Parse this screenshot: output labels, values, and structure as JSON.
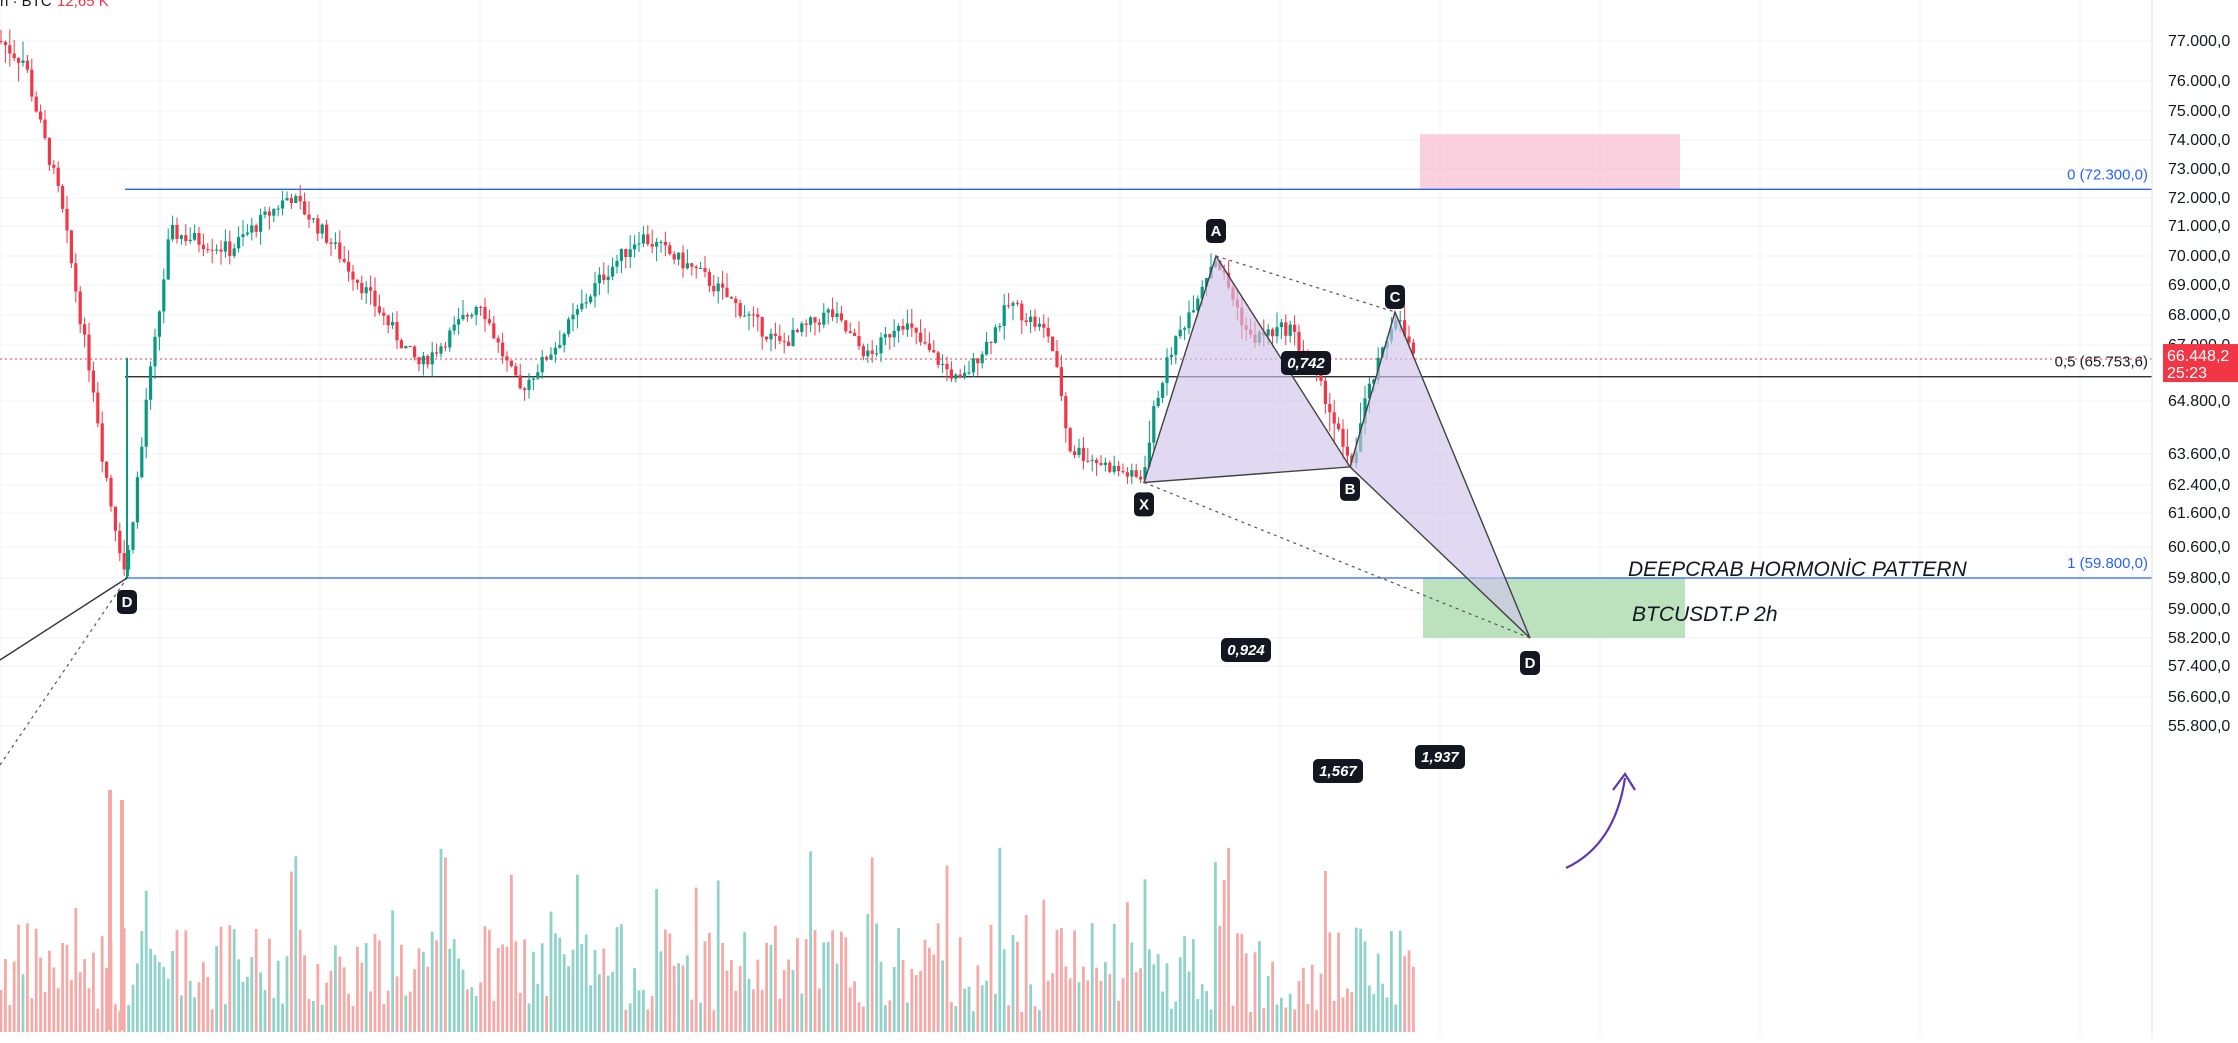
{
  "header": {
    "symbol_fragment": "n · BTC",
    "volume_value": "12,65 K",
    "volume_color": "#f23645"
  },
  "colors": {
    "up": "#089981",
    "down": "#f23645",
    "volume_up": "#8fd3cb",
    "volume_down": "#f7a9a7",
    "fib_line": "#2962ff",
    "fib_label": "#2962ff",
    "mid_line": "#131722",
    "pattern_fill": "#d1c4e9",
    "pattern_stroke": "#424242",
    "target_zone": "#b7dfb9",
    "supply_zone": "#f8bbd0",
    "arrow": "#5e35b1",
    "price_badge": "#f23645"
  },
  "chart_data": {
    "type": "candlestick",
    "symbol": "BTCUSDT.P",
    "timeframe": "2h",
    "y_axis": {
      "ticks": [
        {
          "value": 77000,
          "label": "77.000,0"
        },
        {
          "value": 76000,
          "label": "76.000,0"
        },
        {
          "value": 75000,
          "label": "75.000,0"
        },
        {
          "value": 74000,
          "label": "74.000,0"
        },
        {
          "value": 73000,
          "label": "73.000,0"
        },
        {
          "value": 72000,
          "label": "72.000,0"
        },
        {
          "value": 71000,
          "label": "71.000,0"
        },
        {
          "value": 70000,
          "label": "70.000,0"
        },
        {
          "value": 69000,
          "label": "69.000,0"
        },
        {
          "value": 68000,
          "label": "68.000,0"
        },
        {
          "value": 67000,
          "label": "67.000,0"
        },
        {
          "value": 64800,
          "label": "64.800,0"
        },
        {
          "value": 63600,
          "label": "63.600,0"
        },
        {
          "value": 62400,
          "label": "62.400,0"
        },
        {
          "value": 61600,
          "label": "61.600,0"
        },
        {
          "value": 60600,
          "label": "60.600,0"
        },
        {
          "value": 59800,
          "label": "59.800,0"
        },
        {
          "value": 59000,
          "label": "59.000,0"
        },
        {
          "value": 58200,
          "label": "58.200,0"
        },
        {
          "value": 57400,
          "label": "57.400,0"
        },
        {
          "value": 56600,
          "label": "56.600,0"
        },
        {
          "value": 55800,
          "label": "55.800,0"
        }
      ]
    },
    "current_price": {
      "label": "66.448,2",
      "countdown": "25:23",
      "value": 66448.2
    },
    "levels": [
      {
        "label": "0 (72.300,0)",
        "value": 72300,
        "color": "#2962ff"
      },
      {
        "label": "0,5 (65.753,6)",
        "value": 65753.6,
        "color": "#131722"
      },
      {
        "label": "1 (59.800,0)",
        "value": 59800,
        "color": "#2962ff"
      }
    ],
    "pattern": {
      "name": "DEEPCRAB HORMONİC PATTERN",
      "subtitle": "BTCUSDT.P 2h",
      "points": [
        {
          "label": "X",
          "value": 62500
        },
        {
          "label": "A",
          "value": 70000
        },
        {
          "label": "B",
          "value": 63100
        },
        {
          "label": "C",
          "value": 68100
        },
        {
          "label": "D",
          "value": 58200
        }
      ],
      "ratios": [
        {
          "label": "0,742",
          "between": "A-C"
        },
        {
          "label": "0,924",
          "between": "X-B"
        },
        {
          "label": "1,567",
          "between": "X-D"
        },
        {
          "label": "1,937",
          "between": "B-D"
        }
      ],
      "prior_point": {
        "label": "D",
        "value": 59800
      }
    },
    "zones": [
      {
        "name": "supply",
        "from": 72300,
        "to": 74200
      },
      {
        "name": "target",
        "from": 58200,
        "to": 59800
      }
    ],
    "candles_summary": [
      77000,
      76500,
      72000,
      62000,
      59800,
      70800,
      70200,
      72100,
      70500,
      66200,
      68500,
      65200,
      69200,
      70700,
      69400,
      67000,
      68100,
      66500,
      67900,
      65500,
      68400,
      67300,
      63800,
      62600,
      66700,
      70000,
      67200,
      67600,
      65400,
      63100,
      68100,
      66448.2
    ]
  }
}
